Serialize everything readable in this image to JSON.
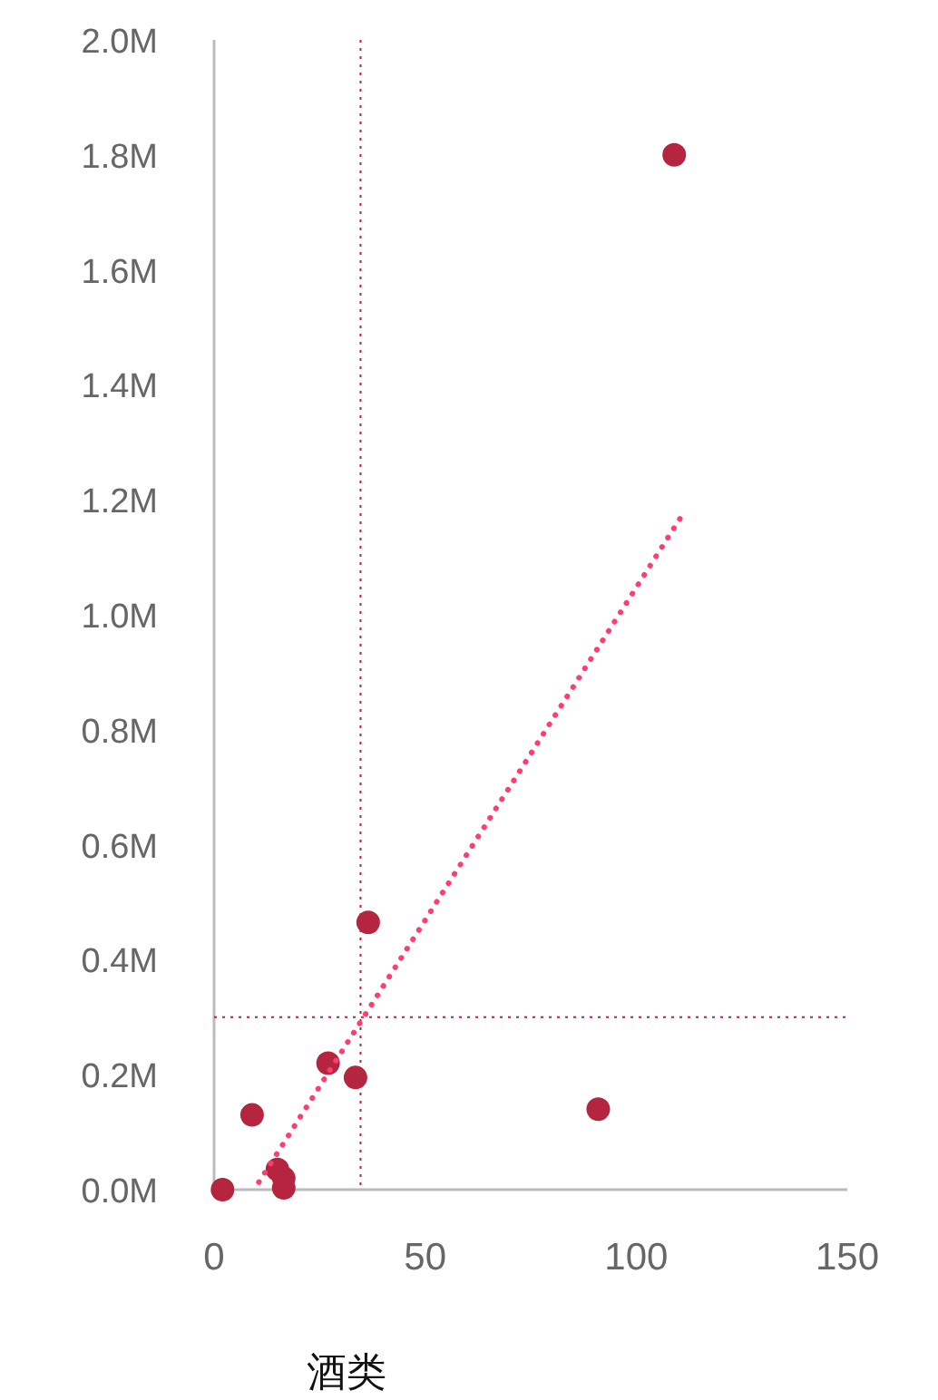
{
  "chart_data": {
    "type": "scatter",
    "xlabel": "酒类",
    "grid": false,
    "xlim": [
      0,
      150
    ],
    "xticks": [
      0,
      50,
      100,
      150
    ],
    "ylim": [
      0,
      2.0
    ],
    "yticks": [
      {
        "value": 0,
        "label": "0.0M"
      },
      {
        "value": 0.2,
        "label": "0.2M"
      },
      {
        "value": 0.4,
        "label": "0.4M"
      },
      {
        "value": 0.6,
        "label": "0.6M"
      },
      {
        "value": 0.8,
        "label": "0.8M"
      },
      {
        "value": 1.0,
        "label": "1.0M"
      },
      {
        "value": 1.2,
        "label": "1.2M"
      },
      {
        "value": 1.4,
        "label": "1.4M"
      },
      {
        "value": 1.6,
        "label": "1.6M"
      },
      {
        "value": 1.8,
        "label": "1.8M"
      },
      {
        "value": 2.0,
        "label": "2.0M"
      }
    ],
    "series": [
      {
        "type": "scatter",
        "marker": "circle",
        "color": "#b5253f",
        "x": [
          2,
          9,
          15,
          16.5,
          16.5,
          27,
          33.5,
          36.5,
          91,
          109
        ],
        "values": [
          0,
          0.13,
          0.035,
          0.02,
          0.003,
          0.22,
          0.195,
          0.465,
          0.14,
          1.8
        ]
      },
      {
        "type": "line",
        "color": "#ff3d6e",
        "line_style": "dotted",
        "x": [
          10.6,
          110.6
        ],
        "values": [
          0.013,
          1.17
        ]
      }
    ],
    "ref_lines": [
      {
        "axis": "x",
        "value": 34.7,
        "color": "#b5253f",
        "line_style": "dotted"
      },
      {
        "axis": "y",
        "value": 0.3,
        "color": "#b5253f",
        "line_style": "dotted"
      }
    ]
  }
}
